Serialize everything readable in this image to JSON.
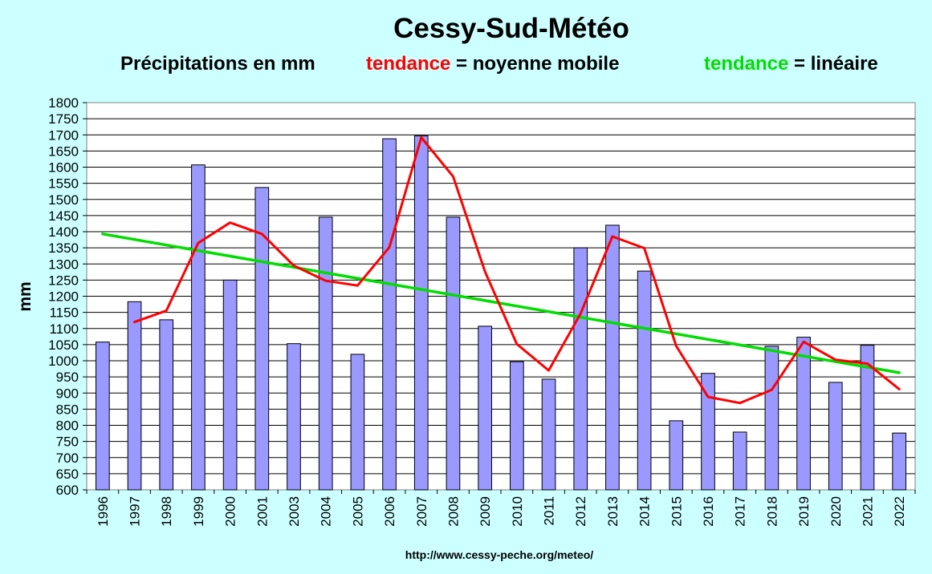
{
  "chart_data": {
    "type": "bar",
    "title": "Cessy-Sud-Météo",
    "subtitle": {
      "part1": "Précipitations en mm",
      "moving_label": "tendance",
      "moving_text": " = noyenne mobile",
      "linear_label": "tendance",
      "linear_text": " = linéaire"
    },
    "ylabel": "mm",
    "ylim": [
      600,
      1800
    ],
    "ytick_step": 50,
    "grid": true,
    "colors": {
      "background": "#ccffff",
      "plot_background": "#ffffff",
      "bar": "#9999ff",
      "moving_average": "#ff0000",
      "linear_trend": "#00dd00",
      "subtitle_text": "#000000"
    },
    "categories": [
      "1996",
      "1997",
      "1998",
      "1999",
      "2000",
      "2001",
      "2003",
      "2004",
      "2005",
      "2006",
      "2007",
      "2008",
      "2009",
      "2010",
      "2011",
      "2012",
      "2013",
      "2014",
      "2015",
      "2016",
      "2017",
      "2018",
      "2019",
      "2020",
      "2021",
      "2022"
    ],
    "series": [
      {
        "type": "bar",
        "values": [
          1058,
          1183,
          1127,
          1607,
          1250,
          1537,
          1053,
          1445,
          1020,
          1688,
          1697,
          1445,
          1107,
          997,
          943,
          1350,
          1420,
          1278,
          814,
          961,
          779,
          1045,
          1073,
          933,
          1048,
          776
        ]
      },
      {
        "type": "line",
        "values": [
          null,
          1120,
          1155,
          1365,
          1428,
          1393,
          1295,
          1248,
          1233,
          1352,
          1692,
          1571,
          1276,
          1052,
          970,
          1146,
          1385,
          1349,
          1046,
          888,
          869,
          910,
          1059,
          1003,
          991,
          912
        ]
      },
      {
        "type": "line",
        "start": 1393,
        "end": 963
      }
    ],
    "source": "http://www.cessy-peche.org/meteo/"
  }
}
